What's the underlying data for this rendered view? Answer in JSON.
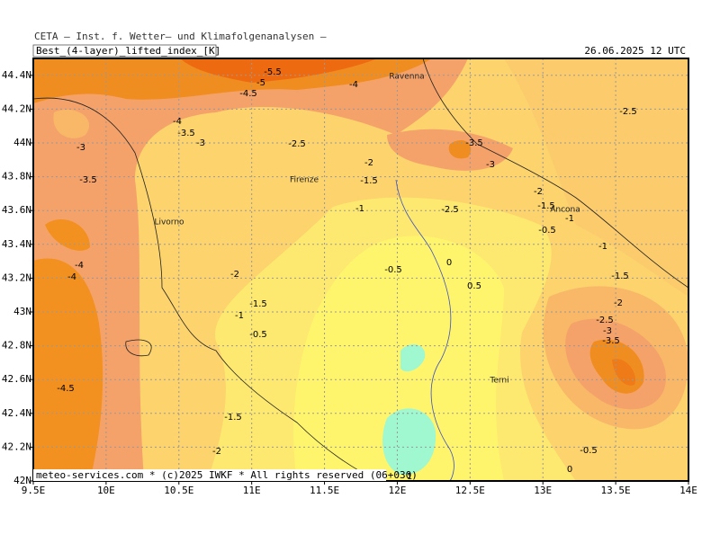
{
  "header": {
    "institute": "CETA — Inst. f. Wetter— und Klimafolgenanalysen —",
    "field": "Best_(4-layer)_lifted_index_[K]",
    "valid_time": "26.06.2025 12 UTC"
  },
  "map": {
    "lon_range": [
      9.5,
      14
    ],
    "lat_range": [
      42,
      44.5
    ],
    "lon_ticks": [
      {
        "value": 9.5,
        "label": "9.5E"
      },
      {
        "value": 10,
        "label": "10E"
      },
      {
        "value": 10.5,
        "label": "10.5E"
      },
      {
        "value": 11,
        "label": "11E"
      },
      {
        "value": 11.5,
        "label": "11.5E"
      },
      {
        "value": 12,
        "label": "12E"
      },
      {
        "value": 12.5,
        "label": "12.5E"
      },
      {
        "value": 13,
        "label": "13E"
      },
      {
        "value": 13.5,
        "label": "13.5E"
      },
      {
        "value": 14,
        "label": "14E"
      }
    ],
    "lat_ticks": [
      {
        "value": 42,
        "label": "42N"
      },
      {
        "value": 42.2,
        "label": "42.2N"
      },
      {
        "value": 42.4,
        "label": "42.4N"
      },
      {
        "value": 42.6,
        "label": "42.6N"
      },
      {
        "value": 42.8,
        "label": "42.8N"
      },
      {
        "value": 43,
        "label": "43N"
      },
      {
        "value": 43.2,
        "label": "43.2N"
      },
      {
        "value": 43.4,
        "label": "43.4N"
      },
      {
        "value": 43.6,
        "label": "43.6N"
      },
      {
        "value": 43.8,
        "label": "43.8N"
      },
      {
        "value": 44,
        "label": "44N"
      },
      {
        "value": 44.2,
        "label": "44.2N"
      },
      {
        "value": 44.4,
        "label": "44.4N"
      }
    ],
    "cities": [
      "Ravenna",
      "Firenze",
      "Livorno",
      "Ancona",
      "Terni"
    ],
    "contour_labels": [
      -5.5,
      -5,
      -4.5,
      -4,
      -4,
      -3.5,
      -3,
      -3,
      -3.5,
      -2.5,
      -2,
      -1.5,
      -1,
      -3.5,
      -3,
      -2.5,
      -2,
      -1.5,
      -1,
      -0.5,
      -1,
      -2.5,
      -4,
      -4,
      -2,
      -1.5,
      -1,
      -0.5,
      -0.5,
      0,
      0.5,
      -1.5,
      -2,
      -2.5,
      -3,
      -3.5,
      -4.5,
      -1.5,
      -2,
      -0.5,
      0,
      1
    ]
  },
  "footer": "meteo-services.com * (c)2025 IWKF * All rights reserved (06+030)"
}
